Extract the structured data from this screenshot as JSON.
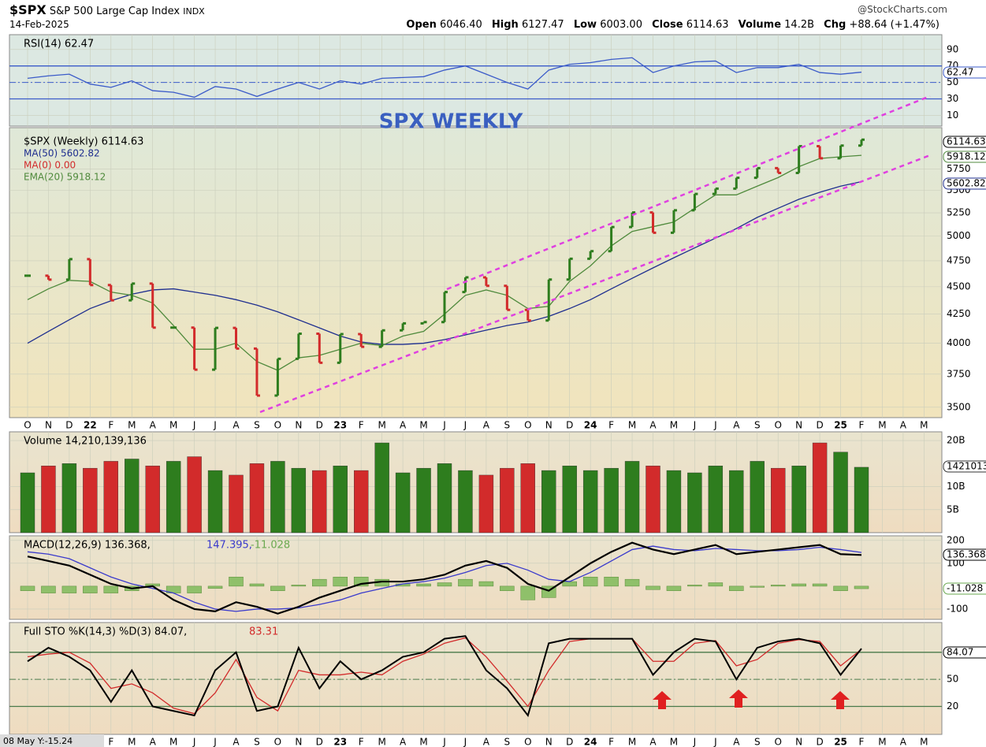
{
  "header": {
    "symbol": "$SPX",
    "name": "S&P 500 Large Cap Index",
    "exchange": "INDX",
    "date": "14-Feb-2025",
    "source": "@StockCharts.com",
    "quote": [
      [
        "Open",
        "6046.40"
      ],
      [
        "High",
        "6127.47"
      ],
      [
        "Low",
        "6003.00"
      ],
      [
        "Close",
        "6114.63"
      ],
      [
        "Volume",
        "14.2B"
      ],
      [
        "Chg",
        "+88.64 (+1.47%)"
      ]
    ],
    "cursor": "08 May Y:-15.24"
  },
  "chart_data": [
    {
      "type": "line",
      "legend": [
        "RSI(14) 62.47"
      ],
      "ylim": [
        -3,
        108
      ],
      "yticks": [
        90,
        70,
        50,
        30,
        10
      ],
      "reference_lines": [
        70,
        50,
        30
      ],
      "series": [
        {
          "color": "#3b5bc9",
          "values": [
            55,
            58,
            60,
            48,
            44,
            52,
            40,
            38,
            32,
            45,
            42,
            33,
            42,
            50,
            42,
            52,
            48,
            55,
            56,
            57,
            65,
            70,
            60,
            50,
            42,
            65,
            72,
            74,
            78,
            80,
            62,
            70,
            75,
            76,
            62,
            68,
            68,
            72,
            62,
            60,
            62.47,
            null,
            null,
            null
          ]
        }
      ]
    },
    {
      "type": "ohlc",
      "title": "SPX WEEKLY",
      "log": true,
      "ylim": [
        3425,
        6270
      ],
      "yticks": [
        3500,
        3750,
        4000,
        4250,
        4500,
        4750,
        5000,
        5250,
        5500,
        5750
      ],
      "legend": [
        "$SPX (Weekly) 6114.63",
        "MA(50) 5602.82",
        "MA(0) 0.00",
        "EMA(20) 5918.12"
      ],
      "categories": [
        "O",
        "N",
        "D",
        "22",
        "F",
        "M",
        "A",
        "M",
        "J",
        "J",
        "A",
        "S",
        "O",
        "N",
        "D",
        "23",
        "F",
        "M",
        "A",
        "M",
        "J",
        "J",
        "A",
        "S",
        "O",
        "N",
        "D",
        "24",
        "F",
        "M",
        "A",
        "M",
        "J",
        "J",
        "A",
        "S",
        "O",
        "N",
        "D",
        "25",
        "F",
        "M",
        "A",
        "M"
      ],
      "up_color": "#2e7d1e",
      "down_color": "#d22b2b",
      "series": [
        {
          "name": "$SPX (Weekly)",
          "color": "#000000",
          "values": [
            4605,
            4567,
            4766,
            4516,
            4374,
            4530,
            4132,
            4132,
            3785,
            4130,
            3955,
            3586,
            3872,
            4080,
            3840,
            4077,
            3970,
            4109,
            4169,
            4180,
            4450,
            4589,
            4508,
            4288,
            4194,
            4568,
            4770,
            4846,
            5096,
            5254,
            5036,
            5278,
            5460,
            5522,
            5648,
            5762,
            5705,
            6032,
            5882,
            6040,
            6114.63,
            null,
            null,
            null
          ]
        },
        {
          "name": "MA(50)",
          "color": "#1f2f8f",
          "values": [
            4000,
            4100,
            4200,
            4300,
            4370,
            4430,
            4470,
            4480,
            4450,
            4420,
            4380,
            4330,
            4270,
            4200,
            4130,
            4060,
            4010,
            3990,
            3990,
            4000,
            4030,
            4070,
            4110,
            4150,
            4180,
            4230,
            4300,
            4380,
            4480,
            4580,
            4680,
            4780,
            4880,
            4980,
            5080,
            5200,
            5300,
            5400,
            5480,
            5550,
            5602.82,
            null,
            null,
            null
          ]
        },
        {
          "name": "EMA(20)",
          "color": "#4f8a3c",
          "values": [
            4380,
            4480,
            4560,
            4550,
            4450,
            4420,
            4350,
            4150,
            3950,
            3950,
            4000,
            3850,
            3780,
            3880,
            3900,
            3950,
            4000,
            3980,
            4060,
            4100,
            4250,
            4420,
            4470,
            4420,
            4300,
            4320,
            4550,
            4700,
            4900,
            5050,
            5100,
            5150,
            5300,
            5450,
            5450,
            5550,
            5650,
            5780,
            5880,
            5900,
            5918.12,
            null,
            null,
            null
          ]
        }
      ]
    },
    {
      "type": "bar",
      "legend": [
        "Volume 14,210,139,136"
      ],
      "ylim": [
        0,
        21900000000
      ],
      "yticks": [
        {
          "value": 5000000000,
          "label": "5B"
        },
        {
          "value": 10000000000,
          "label": "10B"
        },
        {
          "value": 20000000000,
          "label": "20B"
        }
      ],
      "series": [
        {
          "values": [
            13000000000,
            14500000000,
            15000000000,
            14000000000,
            15500000000,
            16000000000,
            14500000000,
            15500000000,
            16500000000,
            13500000000,
            12500000000,
            15000000000,
            15500000000,
            14000000000,
            13500000000,
            14500000000,
            13500000000,
            19500000000,
            13000000000,
            14000000000,
            15000000000,
            13500000000,
            12500000000,
            14000000000,
            15000000000,
            13500000000,
            14500000000,
            13500000000,
            14000000000,
            15500000000,
            14500000000,
            13500000000,
            13000000000,
            14500000000,
            13500000000,
            15500000000,
            14000000000,
            14500000000,
            19500000000,
            17500000000,
            14210139136,
            null,
            null,
            null
          ]
        }
      ]
    },
    {
      "type": "line",
      "legend": [
        "MACD(12,26,9) 136.368,",
        "147.395,",
        "-11.028"
      ],
      "legend_colors": [
        "#000000",
        "#3a3acc",
        "#6aa84f"
      ],
      "ylim": [
        -145,
        220
      ],
      "yticks": [
        200,
        100,
        -100
      ],
      "series": [
        {
          "color": "#8fc06a",
          "kind": "bar",
          "values": [
            -20,
            -30,
            -30,
            -30,
            -30,
            -20,
            10,
            -30,
            -30,
            -10,
            40,
            10,
            -20,
            5,
            30,
            40,
            40,
            30,
            10,
            10,
            15,
            30,
            20,
            -20,
            -60,
            -50,
            20,
            40,
            40,
            30,
            -15,
            -20,
            5,
            15,
            -20,
            -5,
            5,
            10,
            10,
            -20,
            -11.028,
            null,
            null,
            null
          ]
        },
        {
          "color": "#3a3acc",
          "values": [
            150,
            140,
            120,
            80,
            40,
            10,
            -10,
            -30,
            -70,
            -100,
            -110,
            -100,
            -100,
            -95,
            -80,
            -60,
            -30,
            -10,
            10,
            20,
            35,
            60,
            90,
            100,
            70,
            30,
            20,
            60,
            110,
            160,
            175,
            160,
            155,
            165,
            160,
            155,
            155,
            160,
            170,
            160,
            147.395,
            null,
            null,
            null
          ]
        },
        {
          "color": "#000000",
          "width": 2.2,
          "values": [
            130,
            110,
            90,
            50,
            10,
            -10,
            0,
            -60,
            -100,
            -110,
            -70,
            -90,
            -120,
            -90,
            -50,
            -20,
            10,
            20,
            20,
            30,
            50,
            90,
            110,
            80,
            10,
            -20,
            40,
            100,
            150,
            190,
            160,
            140,
            160,
            180,
            140,
            150,
            160,
            170,
            180,
            140,
            136.368,
            null,
            null,
            null
          ]
        }
      ]
    },
    {
      "type": "line",
      "legend": [
        "Full STO %K(14,3) %D(3) 84.07,",
        "83.31"
      ],
      "legend_colors": [
        "#000000",
        "#d22b2b"
      ],
      "ylim": [
        -11,
        113
      ],
      "yticks": [
        80,
        50,
        20
      ],
      "reference_lines": [
        80,
        50,
        20
      ],
      "categories": [
        "O",
        "N",
        "D",
        "22",
        "F",
        "M",
        "A",
        "M",
        "J",
        "J",
        "A",
        "S",
        "O",
        "N",
        "D",
        "23",
        "F",
        "M",
        "A",
        "M",
        "J",
        "J",
        "A",
        "S",
        "O",
        "N",
        "D",
        "24",
        "F",
        "M",
        "A",
        "M",
        "J",
        "J",
        "A",
        "S",
        "O",
        "N",
        "D",
        "25",
        "F",
        "M",
        "A",
        "M"
      ],
      "series": [
        {
          "color": "#d22b2b",
          "values": [
            75,
            78,
            80,
            68,
            40,
            45,
            35,
            18,
            12,
            35,
            72,
            30,
            15,
            60,
            55,
            55,
            58,
            55,
            70,
            78,
            90,
            96,
            75,
            48,
            20,
            60,
            92,
            95,
            95,
            95,
            70,
            70,
            90,
            93,
            65,
            72,
            90,
            94,
            92,
            65,
            83.31,
            null,
            null,
            null
          ]
        },
        {
          "color": "#000000",
          "width": 2,
          "values": [
            70,
            85,
            75,
            60,
            25,
            60,
            20,
            15,
            10,
            60,
            80,
            15,
            20,
            85,
            40,
            70,
            50,
            60,
            75,
            80,
            95,
            98,
            60,
            40,
            10,
            90,
            95,
            95,
            95,
            95,
            55,
            80,
            95,
            92,
            50,
            85,
            92,
            95,
            90,
            55,
            84.07,
            null,
            null,
            null
          ]
        }
      ]
    }
  ]
}
